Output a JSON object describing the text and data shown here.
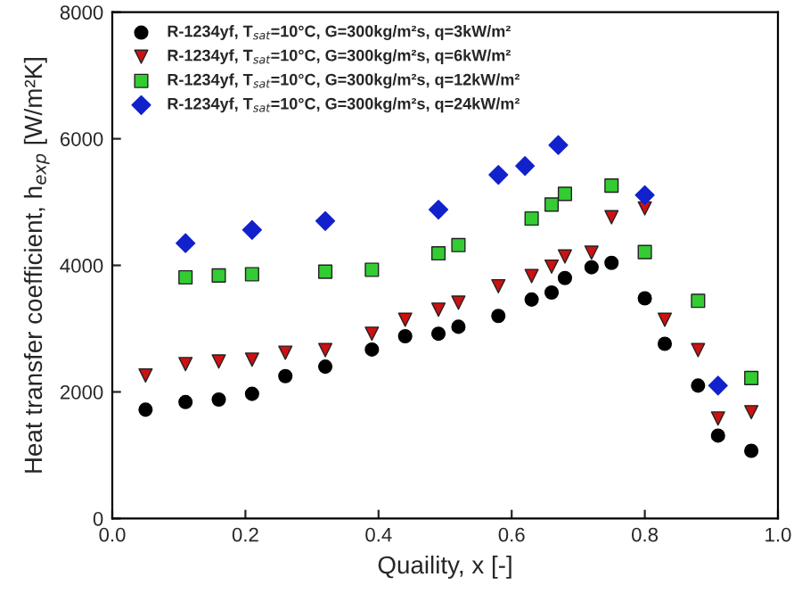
{
  "chart_data": {
    "type": "scatter",
    "xlabel": "Quaility, x [-]",
    "ylabel": "Heat transfer coefficient, h$_{exp}$ [W/m²K]",
    "xlim": [
      0,
      1
    ],
    "ylim": [
      0,
      8000
    ],
    "xticks": [
      {
        "value": 0,
        "label": "0.0"
      },
      {
        "value": 0.2,
        "label": "0.2"
      },
      {
        "value": 0.4,
        "label": "0.4"
      },
      {
        "value": 0.6,
        "label": "0.6"
      },
      {
        "value": 0.8,
        "label": "0.8"
      },
      {
        "value": 1,
        "label": "1.0"
      }
    ],
    "yticks": [
      0,
      2000,
      4000,
      6000,
      8000
    ],
    "grid": false,
    "legend": "top left",
    "series": [
      {
        "name": "R-1234yf, T$_{sat}$=10°C, G=300kg/m²s, q=3kW/m²",
        "color": "#000000",
        "marker": "circle",
        "x": [
          0.05,
          0.11,
          0.16,
          0.21,
          0.26,
          0.32,
          0.39,
          0.44,
          0.49,
          0.52,
          0.58,
          0.63,
          0.66,
          0.68,
          0.72,
          0.75,
          0.8,
          0.83,
          0.88,
          0.91,
          0.96
        ],
        "values": [
          1720,
          1840,
          1880,
          1970,
          2250,
          2400,
          2670,
          2880,
          2920,
          3030,
          3200,
          3460,
          3570,
          3800,
          3970,
          4040,
          3480,
          2760,
          2100,
          1310,
          1070
        ]
      },
      {
        "name": "R-1234yf, T$_{sat}$=10°C, G=300kg/m²s, q=6kW/m²",
        "color": "#cc1111",
        "marker": "triangle_down",
        "x": [
          0.05,
          0.11,
          0.16,
          0.21,
          0.26,
          0.32,
          0.39,
          0.44,
          0.49,
          0.52,
          0.58,
          0.63,
          0.66,
          0.68,
          0.72,
          0.75,
          0.8,
          0.83,
          0.88,
          0.91,
          0.96
        ],
        "values": [
          2260,
          2440,
          2480,
          2510,
          2620,
          2660,
          2920,
          3140,
          3300,
          3410,
          3670,
          3830,
          3980,
          4140,
          4200,
          4760,
          4900,
          3140,
          2660,
          1580,
          1680
        ]
      },
      {
        "name": "R-1234yf, T$_{sat}$=10°C, G=300kg/m²s, q=12kW/m²",
        "color": "#33cc33",
        "marker": "square",
        "x": [
          0.11,
          0.16,
          0.21,
          0.32,
          0.39,
          0.49,
          0.52,
          0.63,
          0.66,
          0.68,
          0.75,
          0.8,
          0.88,
          0.96
        ],
        "values": [
          3810,
          3840,
          3860,
          3900,
          3930,
          4190,
          4320,
          4740,
          4960,
          5130,
          5260,
          4210,
          3440,
          2220
        ]
      },
      {
        "name": "R-1234yf, T$_{sat}$=10°C, G=300kg/m²s, q=24kW/m²",
        "color": "#1122cc",
        "marker": "diamond",
        "x": [
          0.11,
          0.21,
          0.32,
          0.49,
          0.58,
          0.62,
          0.67,
          0.8,
          0.91
        ],
        "values": [
          4350,
          4560,
          4700,
          4880,
          5430,
          5570,
          5900,
          5110,
          2100
        ]
      }
    ]
  }
}
